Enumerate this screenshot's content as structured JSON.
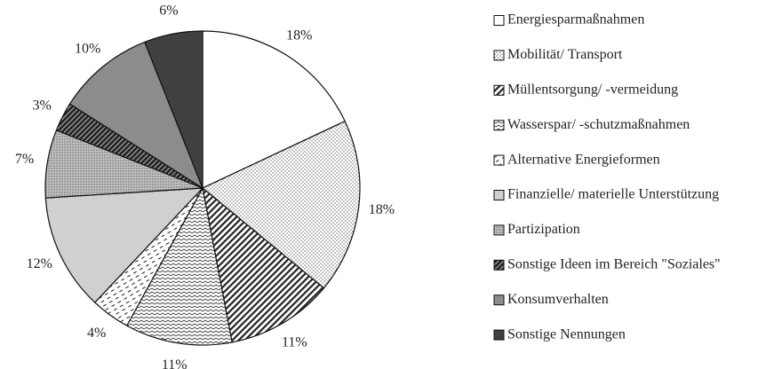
{
  "chart_data": {
    "type": "pie",
    "categories": [
      "Energiesparmaßnahmen",
      "Mobilität/ Transport",
      "Müllentsorgung/ -vermeidung",
      "Wasserspar/ -schutzmaßnahmen",
      "Alternative Energieformen",
      "Finanzielle/ materielle Unterstützung",
      "Partizipation",
      "Sonstige Ideen im Bereich \"Soziales\"",
      "Konsumverhalten",
      "Sonstige Nennungen"
    ],
    "values": [
      18,
      18,
      11,
      11,
      4,
      12,
      7,
      3,
      10,
      6
    ],
    "value_labels": [
      "18%",
      "18%",
      "11%",
      "11%",
      "4%",
      "12%",
      "7%",
      "3%",
      "10%",
      "6%"
    ],
    "colors": [
      "#ffffff",
      "#ffffff",
      "#ffffff",
      "#ffffff",
      "#ffffff",
      "#d0d0d0",
      "#bfbfbf",
      "#ffffff",
      "#8c8c8c",
      "#404040"
    ],
    "legend": "right"
  }
}
